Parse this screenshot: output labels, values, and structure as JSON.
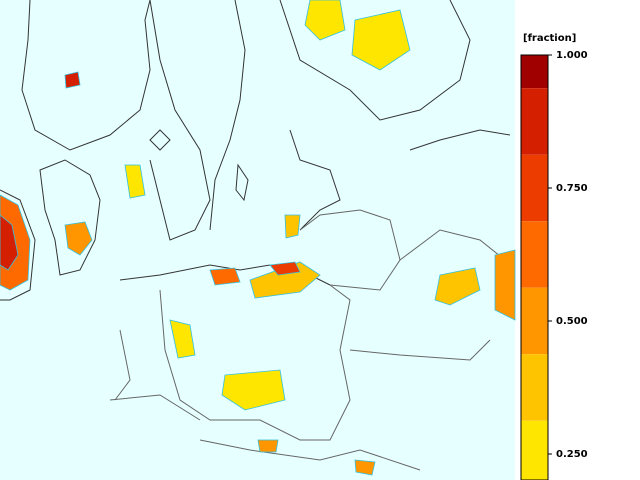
{
  "colorbar": {
    "unit": "[fraction]",
    "ticks": [
      {
        "value": 1,
        "label": "1.000"
      },
      {
        "value": 0.75,
        "label": "0.750"
      },
      {
        "value": 0.5,
        "label": "0.500"
      },
      {
        "value": 0.25,
        "label": "0.250"
      }
    ],
    "colors": [
      "#a00000",
      "#d42000",
      "#ec3c00",
      "#ff6a00",
      "#ff9600",
      "#ffc400",
      "#ffe600",
      "#ffff80"
    ]
  }
}
